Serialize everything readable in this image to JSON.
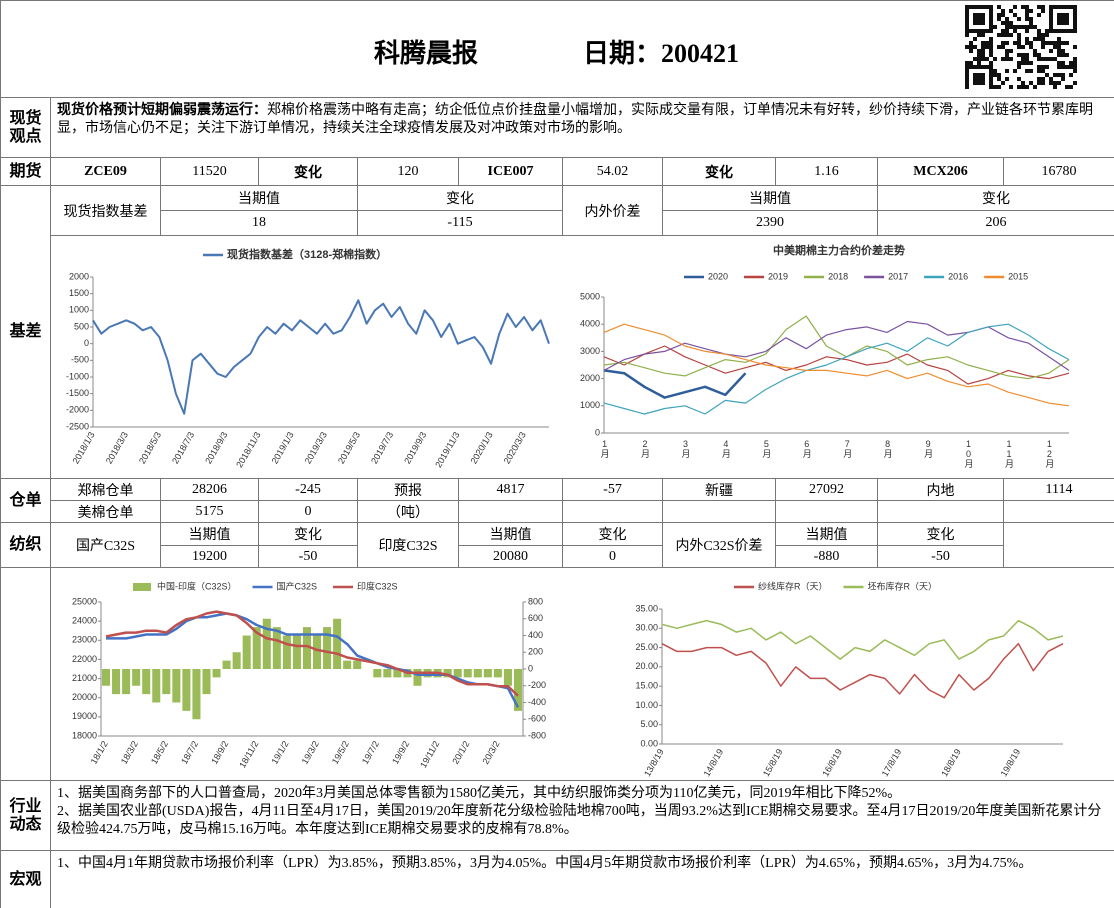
{
  "header": {
    "title": "科腾晨报",
    "date": "日期：200421"
  },
  "labels": {
    "spot": "现货观点",
    "futures": "期货",
    "basis": "基差",
    "warehouse": "仓单",
    "textile": "纺织",
    "industry": "行业动态",
    "macro": "宏观"
  },
  "spot": {
    "lead": "现货价格预计短期偏弱震荡运行：",
    "text": "郑棉价格震荡中略有走高；纺企低位点价挂盘量小幅增加，实际成交量有限，订单情况未有好转，纱价持续下滑，产业链各环节累库明显，市场信心仍不足；关注下游订单情况，持续关注全球疫情发展及对冲政策对市场的影响。"
  },
  "futures": [
    "ZCE09",
    11520,
    "变化",
    120,
    "ICE007",
    54.02,
    "变化",
    1.16,
    "MCX206",
    16780
  ],
  "basis_table": {
    "label": "现货指数基差",
    "current_label": "当期值",
    "current": 18,
    "change_label": "变化",
    "change": -115,
    "spread_label": "内外价差",
    "spread_current_label": "当期值",
    "spread_current": 2390,
    "spread_change_label": "变化",
    "spread_change": 206
  },
  "warehouse": {
    "rows": [
      [
        "郑棉仓单",
        28206,
        -245,
        "预报",
        4817,
        -57,
        "新疆",
        27092,
        "内地",
        1114
      ],
      [
        "美棉仓单",
        5175,
        0,
        "（吨）"
      ]
    ]
  },
  "textile": {
    "domestic": "国产C32S",
    "india": "印度C32S",
    "spread": "内外C32S价差",
    "current_label": "当期值",
    "change_label": "变化",
    "values": [
      [
        19200,
        -50
      ],
      [
        20080,
        0
      ],
      [
        -880,
        -50
      ]
    ]
  },
  "industry": [
    "1、据美国商务部下的人口普查局，2020年3月美国总体零售额为1580亿美元，其中纺织服饰类分项为110亿美元，同2019年相比下降52%。",
    "2、据美国农业部(USDA)报告，4月11日至4月17日，美国2019/20年度新花分级检验陆地棉700吨，当周93.2%达到ICE期棉交易要求。至4月17日2019/20年度美国新花累计分级检验424.75万吨，皮马棉15.16万吨。本年度达到ICE期棉交易要求的皮棉有78.8%。"
  ],
  "macro": [
    "1、中国4月1年期贷款市场报价利率（LPR）为3.85%，预期3.85%，3月为4.05%。中国4月5年期贷款市场报价利率（LPR）为4.65%，预期4.65%，3月为4.75%。"
  ],
  "chart_data": [
    {
      "type": "line",
      "categories": [
        "2018/1/3",
        null,
        null,
        null,
        "2018/3/3",
        null,
        null,
        null,
        "2018/5/3",
        null,
        null,
        null,
        "2018/7/3",
        null,
        null,
        null,
        "2018/9/3",
        null,
        null,
        null,
        "2018/11/3",
        null,
        null,
        null,
        "2019/1/3",
        null,
        null,
        null,
        "2019/3/3",
        null,
        null,
        null,
        "2019/5/3",
        null,
        null,
        null,
        "2019/7/3",
        null,
        null,
        null,
        "2019/9/3",
        null,
        null,
        null,
        "2019/11/3",
        null,
        null,
        null,
        "2020/1/3",
        null,
        null,
        null,
        "2020/3/3",
        null,
        null,
        null
      ],
      "series": [
        {
          "name": "现货指数基差（3128-郑棉指数）",
          "color": "#4a78b5",
          "values": [
            700,
            300,
            500,
            600,
            700,
            600,
            400,
            500,
            200,
            -500,
            -1500,
            -2100,
            -500,
            -300,
            -600,
            -900,
            -1000,
            -700,
            -500,
            -300,
            200,
            500,
            300,
            600,
            400,
            700,
            500,
            300,
            600,
            300,
            400,
            800,
            1300,
            600,
            1000,
            1200,
            800,
            1100,
            600,
            300,
            1000,
            700,
            200,
            600,
            0,
            100,
            200,
            -100,
            -600,
            300,
            900,
            500,
            800,
            400,
            700,
            0
          ]
        }
      ],
      "ylim": [
        -2500,
        2000
      ],
      "yticks": [
        -2500,
        -2000,
        -1500,
        -1000,
        -500,
        0,
        500,
        1000,
        1500,
        2000
      ]
    },
    {
      "type": "line",
      "title": "中美期棉主力合约价差走势",
      "categories": [
        "1月",
        null,
        "2月",
        null,
        "3月",
        null,
        "4月",
        null,
        "5月",
        null,
        "6月",
        null,
        "7月",
        null,
        "8月",
        null,
        "9月",
        null,
        "10月",
        null,
        "11月",
        null,
        "12月",
        null
      ],
      "series": [
        {
          "name": "2020",
          "color": "#2e5d9b",
          "values": [
            2300,
            2200,
            1700,
            1300,
            1500,
            1700,
            1400,
            2200,
            null,
            null,
            null,
            null,
            null,
            null,
            null,
            null,
            null,
            null,
            null,
            null,
            null,
            null,
            null,
            null
          ]
        },
        {
          "name": "2019",
          "color": "#b8433f",
          "values": [
            2800,
            2500,
            2900,
            3200,
            2800,
            2500,
            2200,
            2400,
            2600,
            2300,
            2500,
            2800,
            2700,
            2500,
            2600,
            2900,
            2500,
            2300,
            1800,
            2000,
            2300,
            2100,
            2000,
            2200
          ]
        },
        {
          "name": "2018",
          "color": "#8fb04a",
          "values": [
            2500,
            2600,
            2400,
            2200,
            2100,
            2400,
            2700,
            2600,
            2900,
            3800,
            4300,
            3200,
            2800,
            3200,
            3000,
            2500,
            2700,
            2800,
            2500,
            2300,
            2100,
            2000,
            2200,
            2700
          ]
        },
        {
          "name": "2017",
          "color": "#7a52a0",
          "values": [
            2300,
            2700,
            2900,
            3000,
            3300,
            3100,
            2900,
            2800,
            3000,
            3500,
            3100,
            3600,
            3800,
            3900,
            3700,
            4100,
            4000,
            3600,
            3700,
            3900,
            3500,
            3300,
            2800,
            2300
          ]
        },
        {
          "name": "2016",
          "color": "#3fa3be",
          "values": [
            1100,
            900,
            700,
            900,
            1000,
            700,
            1200,
            1100,
            1600,
            2000,
            2300,
            2500,
            2800,
            3100,
            3300,
            3000,
            3500,
            3200,
            3700,
            3900,
            4000,
            3600,
            3100,
            2700
          ]
        },
        {
          "name": "2015",
          "color": "#ee8d30",
          "values": [
            3700,
            4000,
            3800,
            3600,
            3200,
            3000,
            2900,
            2700,
            2500,
            2400,
            2300,
            2300,
            2200,
            2100,
            2300,
            2000,
            2200,
            1900,
            1700,
            1800,
            1500,
            1300,
            1100,
            1000
          ]
        }
      ],
      "ylim": [
        0,
        5000
      ],
      "yticks": [
        0,
        1000,
        2000,
        3000,
        4000,
        5000
      ]
    },
    {
      "type": "combo",
      "categories": [
        "18/1/2",
        null,
        null,
        "18/3/2",
        null,
        null,
        "18/5/2",
        null,
        null,
        "18/7/2",
        null,
        null,
        "18/9/2",
        null,
        null,
        "18/11/2",
        null,
        null,
        "19/1/2",
        null,
        null,
        "19/3/2",
        null,
        null,
        "19/5/2",
        null,
        null,
        "19/7/2",
        null,
        null,
        "19/9/2",
        null,
        null,
        "19/11/2",
        null,
        null,
        "20/1/2",
        null,
        null,
        "20/3/2",
        null,
        null
      ],
      "series": [
        {
          "name": "中国-印度（C32S）",
          "type": "bar",
          "axis": "y2",
          "color": "#9bbb59",
          "values": [
            -200,
            -300,
            -300,
            -200,
            -300,
            -400,
            -300,
            -400,
            -500,
            -600,
            -300,
            -100,
            100,
            200,
            400,
            500,
            600,
            500,
            400,
            400,
            500,
            400,
            500,
            600,
            100,
            100,
            0,
            -100,
            -100,
            -100,
            -100,
            -200,
            -100,
            -100,
            -100,
            -100,
            -100,
            -100,
            -100,
            -100,
            -200,
            -500
          ]
        },
        {
          "name": "国产C32S",
          "color": "#4472c4",
          "values": [
            23100,
            23100,
            23100,
            23200,
            23300,
            23300,
            23300,
            23600,
            24000,
            24200,
            24200,
            24300,
            24400,
            24300,
            24100,
            23800,
            23600,
            23500,
            23300,
            23300,
            23300,
            23300,
            23300,
            23200,
            22800,
            22200,
            22000,
            21800,
            21600,
            21500,
            21400,
            21200,
            21200,
            21200,
            21200,
            21000,
            20800,
            20700,
            20700,
            20600,
            20500,
            19500
          ]
        },
        {
          "name": "印度C32S",
          "color": "#c0504d",
          "values": [
            23200,
            23300,
            23400,
            23400,
            23500,
            23500,
            23400,
            23800,
            24100,
            24200,
            24400,
            24500,
            24400,
            24300,
            23900,
            23400,
            23100,
            23000,
            22800,
            22700,
            22700,
            22500,
            22400,
            22300,
            22100,
            22000,
            21900,
            21800,
            21700,
            21500,
            21300,
            21300,
            21300,
            21300,
            21200,
            20900,
            20700,
            20700,
            20700,
            20600,
            20600,
            20100
          ]
        }
      ],
      "ylim": [
        18000,
        25000
      ],
      "yticks": [
        18000,
        19000,
        20000,
        21000,
        22000,
        23000,
        24000,
        25000
      ],
      "y2lim": [
        -800,
        800
      ],
      "y2ticks": [
        -800,
        -600,
        -400,
        -200,
        0,
        200,
        400,
        600,
        800
      ]
    },
    {
      "type": "line",
      "categories": [
        "13/8/19",
        null,
        null,
        null,
        "14/8/19",
        null,
        null,
        null,
        "15/8/19",
        null,
        null,
        null,
        "16/8/19",
        null,
        null,
        null,
        "17/8/19",
        null,
        null,
        null,
        "18/8/19",
        null,
        null,
        null,
        "19/8/19",
        null,
        null,
        null
      ],
      "series": [
        {
          "name": "纱线库存R（天）",
          "color": "#c0504d",
          "values": [
            26,
            24,
            24,
            25,
            25,
            23,
            24,
            21,
            15,
            20,
            17,
            17,
            14,
            16,
            18,
            17,
            13,
            18,
            14,
            12,
            18,
            14,
            17,
            22,
            26,
            19,
            24,
            26
          ]
        },
        {
          "name": "坯布库存R（天）",
          "color": "#9bbb59",
          "values": [
            31,
            30,
            31,
            32,
            31,
            29,
            30,
            27,
            29,
            26,
            28,
            25,
            22,
            25,
            24,
            27,
            25,
            23,
            26,
            27,
            22,
            24,
            27,
            28,
            32,
            30,
            27,
            28
          ]
        }
      ],
      "ylim": [
        0,
        35
      ],
      "yticks": [
        {
          "value": 0,
          "label": "0.00"
        },
        {
          "value": 5,
          "label": "5.00"
        },
        {
          "value": 10,
          "label": "10.00"
        },
        {
          "value": 15,
          "label": "15.00"
        },
        {
          "value": 20,
          "label": "20.00"
        },
        {
          "value": 25,
          "label": "25.00"
        },
        {
          "value": 30,
          "label": "30.00"
        },
        {
          "value": 35,
          "label": "35.00"
        }
      ]
    }
  ]
}
